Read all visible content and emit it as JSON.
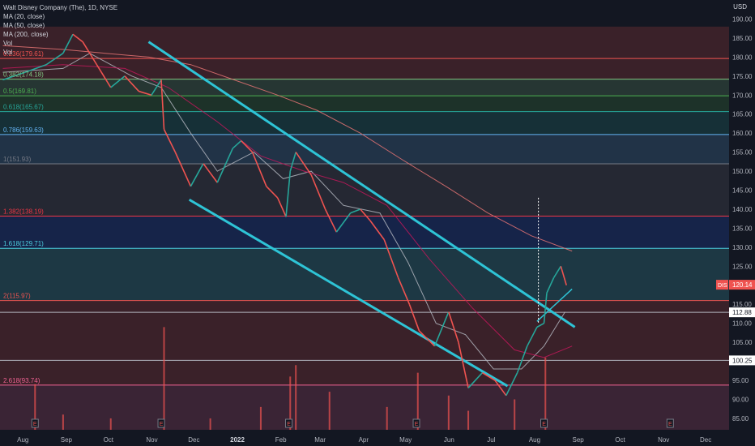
{
  "header": {
    "symbol": "Walt Disney Company (The), 1D, NYSE",
    "indicators": [
      "MA (20, close)",
      "MA (50, close)",
      "MA (200, close)",
      "Vol",
      "Vol"
    ],
    "currency": "USD"
  },
  "colors": {
    "background": "#131722",
    "up": "#26a69a",
    "down": "#ef5350",
    "channel": "#2ec4d6",
    "ma20": "#b2b5be",
    "ma50": "#c2185b",
    "ma200": "#e57373",
    "grid": "#2a2e39"
  },
  "chart_data": {
    "type": "line",
    "title": "Walt Disney Company (The), 1D, NYSE",
    "ylim": [
      82,
      195
    ],
    "y_ticks": [
      190,
      185,
      180,
      175,
      170,
      165,
      160,
      155,
      150,
      145,
      140,
      135,
      130,
      125,
      120,
      115,
      110,
      105,
      100,
      95,
      90,
      85
    ],
    "x_labels": [
      "Aug",
      "Sep",
      "Oct",
      "Nov",
      "Dec",
      "2022",
      "Feb",
      "Mar",
      "Apr",
      "May",
      "Jun",
      "Jul",
      "Aug",
      "Sep",
      "Oct",
      "Nov",
      "Dec"
    ],
    "fib_levels": [
      {
        "label": "0.236(179.61)",
        "price": 179.61,
        "color": "#ef5350"
      },
      {
        "label": "0.382(174.18)",
        "price": 174.18,
        "color": "#81c784"
      },
      {
        "label": "0.5(169.81)",
        "price": 169.81,
        "color": "#4caf50"
      },
      {
        "label": "0.618(165.67)",
        "price": 165.67,
        "color": "#26a69a"
      },
      {
        "label": "0.786(159.63)",
        "price": 159.63,
        "color": "#64b5f6"
      },
      {
        "label": "1(151.93)",
        "price": 151.93,
        "color": "#787b86"
      },
      {
        "label": "1.382(138.19)",
        "price": 138.19,
        "color": "#f23645"
      },
      {
        "label": "1.618(129.71)",
        "price": 129.71,
        "color": "#4dd0e1"
      },
      {
        "label": "2(115.97)",
        "price": 115.97,
        "color": "#ef5350"
      },
      {
        "label": "2.618(93.74)",
        "price": 93.74,
        "color": "#f06292"
      }
    ],
    "price_labels": [
      {
        "value": "120.14",
        "price": 120.14,
        "bg": "#ef5350",
        "tag": "DIS"
      },
      {
        "value": "112.88",
        "price": 112.88,
        "bg": "#ffffff",
        "tag": ""
      },
      {
        "value": "100.25",
        "price": 100.25,
        "bg": "#ffffff",
        "tag": ""
      }
    ],
    "channel_upper": [
      [
        "2021-11-01",
        184
      ],
      [
        "2022-09-01",
        109
      ]
    ],
    "channel_lower": [
      [
        "2021-11-30",
        142.5
      ],
      [
        "2022-07-15",
        93.5
      ]
    ],
    "arrow_line": [
      [
        "2022-08-05",
        110.5
      ],
      [
        "2022-08-30",
        119
      ]
    ],
    "series": [
      {
        "name": "Price",
        "points": [
          [
            "2021-07-20",
            174
          ],
          [
            "2021-08-05",
            176
          ],
          [
            "2021-08-20",
            178
          ],
          [
            "2021-09-01",
            181
          ],
          [
            "2021-09-08",
            186
          ],
          [
            "2021-09-15",
            184
          ],
          [
            "2021-09-25",
            178
          ],
          [
            "2021-10-05",
            172
          ],
          [
            "2021-10-15",
            175
          ],
          [
            "2021-10-25",
            171
          ],
          [
            "2021-11-03",
            170
          ],
          [
            "2021-11-10",
            174
          ],
          [
            "2021-11-12",
            161
          ],
          [
            "2021-11-20",
            155
          ],
          [
            "2021-12-01",
            146
          ],
          [
            "2021-12-10",
            152
          ],
          [
            "2021-12-20",
            147
          ],
          [
            "2021-12-31",
            156
          ],
          [
            "2022-01-06",
            158
          ],
          [
            "2022-01-14",
            155
          ],
          [
            "2022-01-24",
            146
          ],
          [
            "2022-02-01",
            143
          ],
          [
            "2022-02-07",
            138
          ],
          [
            "2022-02-10",
            150
          ],
          [
            "2022-02-14",
            155
          ],
          [
            "2022-02-25",
            149
          ],
          [
            "2022-03-07",
            140
          ],
          [
            "2022-03-15",
            134
          ],
          [
            "2022-03-25",
            139
          ],
          [
            "2022-04-01",
            140
          ],
          [
            "2022-04-08",
            137
          ],
          [
            "2022-04-18",
            132
          ],
          [
            "2022-04-28",
            122
          ],
          [
            "2022-05-06",
            115
          ],
          [
            "2022-05-13",
            108
          ],
          [
            "2022-05-24",
            104
          ],
          [
            "2022-06-03",
            113
          ],
          [
            "2022-06-10",
            105
          ],
          [
            "2022-06-17",
            93
          ],
          [
            "2022-06-27",
            97
          ],
          [
            "2022-07-06",
            95
          ],
          [
            "2022-07-14",
            91
          ],
          [
            "2022-07-22",
            97
          ],
          [
            "2022-07-29",
            104
          ],
          [
            "2022-08-05",
            109
          ],
          [
            "2022-08-10",
            110
          ],
          [
            "2022-08-12",
            118
          ],
          [
            "2022-08-17",
            122
          ],
          [
            "2022-08-22",
            125
          ],
          [
            "2022-08-26",
            120
          ]
        ]
      },
      {
        "name": "MA (20, close)",
        "points": [
          [
            "2021-07-20",
            176
          ],
          [
            "2021-09-01",
            177
          ],
          [
            "2021-09-20",
            181
          ],
          [
            "2021-10-20",
            175
          ],
          [
            "2021-11-10",
            172
          ],
          [
            "2021-12-01",
            160
          ],
          [
            "2021-12-20",
            150
          ],
          [
            "2022-01-15",
            155
          ],
          [
            "2022-02-05",
            148
          ],
          [
            "2022-02-25",
            150
          ],
          [
            "2022-03-20",
            141
          ],
          [
            "2022-04-15",
            139
          ],
          [
            "2022-05-05",
            126
          ],
          [
            "2022-05-25",
            110
          ],
          [
            "2022-06-15",
            107
          ],
          [
            "2022-07-05",
            98
          ],
          [
            "2022-07-25",
            98
          ],
          [
            "2022-08-10",
            104
          ],
          [
            "2022-08-25",
            113
          ]
        ]
      },
      {
        "name": "MA (50, close)",
        "points": [
          [
            "2021-07-20",
            177
          ],
          [
            "2021-09-01",
            178
          ],
          [
            "2021-10-15",
            177
          ],
          [
            "2021-11-15",
            172
          ],
          [
            "2021-12-20",
            163
          ],
          [
            "2022-01-20",
            154
          ],
          [
            "2022-02-20",
            150
          ],
          [
            "2022-03-20",
            147
          ],
          [
            "2022-04-20",
            141
          ],
          [
            "2022-05-20",
            127
          ],
          [
            "2022-06-20",
            114
          ],
          [
            "2022-07-20",
            103
          ],
          [
            "2022-08-10",
            101
          ],
          [
            "2022-08-30",
            104
          ]
        ]
      },
      {
        "name": "MA (200, close)",
        "points": [
          [
            "2021-07-20",
            183
          ],
          [
            "2021-09-01",
            182
          ],
          [
            "2021-10-01",
            181
          ],
          [
            "2021-11-01",
            180
          ],
          [
            "2021-12-01",
            178
          ],
          [
            "2022-01-01",
            174
          ],
          [
            "2022-02-01",
            170
          ],
          [
            "2022-03-01",
            166
          ],
          [
            "2022-04-01",
            160
          ],
          [
            "2022-05-01",
            153
          ],
          [
            "2022-06-01",
            146
          ],
          [
            "2022-07-01",
            139
          ],
          [
            "2022-08-01",
            133
          ],
          [
            "2022-08-30",
            129
          ]
        ]
      }
    ],
    "volume": {
      "baseline": 82,
      "bars": [
        [
          "2021-08-12",
          94
        ],
        [
          "2021-09-01",
          86
        ],
        [
          "2021-10-05",
          85
        ],
        [
          "2021-11-12",
          109
        ],
        [
          "2021-12-15",
          85
        ],
        [
          "2022-01-20",
          88
        ],
        [
          "2022-02-10",
          96
        ],
        [
          "2022-02-14",
          99
        ],
        [
          "2022-03-10",
          92
        ],
        [
          "2022-04-20",
          88
        ],
        [
          "2022-05-12",
          97
        ],
        [
          "2022-06-03",
          91
        ],
        [
          "2022-06-17",
          87
        ],
        [
          "2022-07-20",
          90
        ],
        [
          "2022-08-11",
          101
        ]
      ]
    },
    "earnings_markers": [
      "2021-08-12",
      "2021-11-10",
      "2022-02-09",
      "2022-05-11",
      "2022-08-10",
      "2022-11-08"
    ],
    "earnings_label": "E"
  }
}
